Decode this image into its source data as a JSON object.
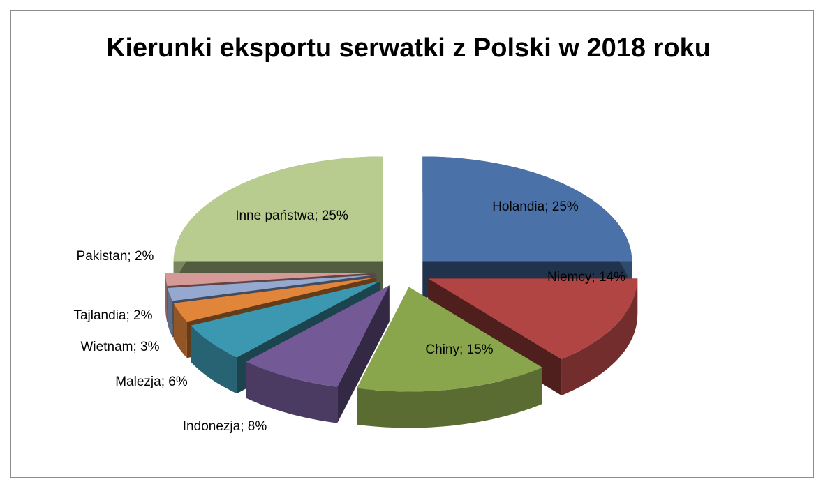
{
  "chart_data": {
    "type": "pie",
    "title": "Kierunki eksportu serwatki z Polski w 2018 roku",
    "categories": [
      "Holandia",
      "Niemcy",
      "Chiny",
      "Indonezja",
      "Malezja",
      "Wietnam",
      "Tajlandia",
      "Pakistan",
      "Inne państwa"
    ],
    "values": [
      25,
      14,
      15,
      8,
      6,
      3,
      2,
      2,
      25
    ],
    "value_labels": [
      "25%",
      "14%",
      "15%",
      "8%",
      "6%",
      "3%",
      "2%",
      "2%",
      "25%"
    ],
    "label_separator": "; ",
    "colors": [
      "#4a72a8",
      "#b04543",
      "#8aa64c",
      "#735a96",
      "#3c98b0",
      "#e0853a",
      "#95a8cf",
      "#d59a98",
      "#b9cc90"
    ]
  }
}
